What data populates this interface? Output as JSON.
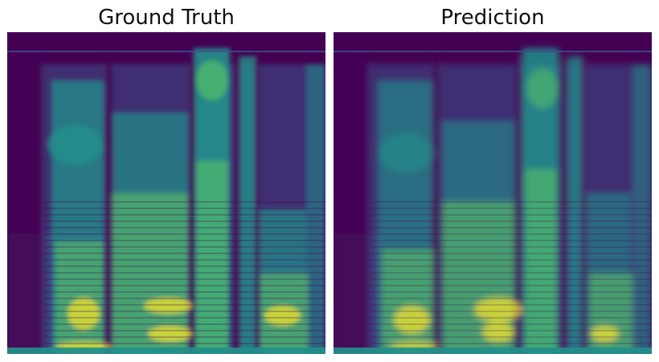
{
  "panels": {
    "left": {
      "title": "Ground Truth"
    },
    "right": {
      "title": "Prediction"
    }
  },
  "colors": {
    "background": "#ffffff",
    "viridis_dark": "#440154",
    "viridis_blue": "#3b528b",
    "viridis_teal": "#21918c",
    "viridis_green": "#5ec962",
    "viridis_yellow": "#fde725"
  }
}
